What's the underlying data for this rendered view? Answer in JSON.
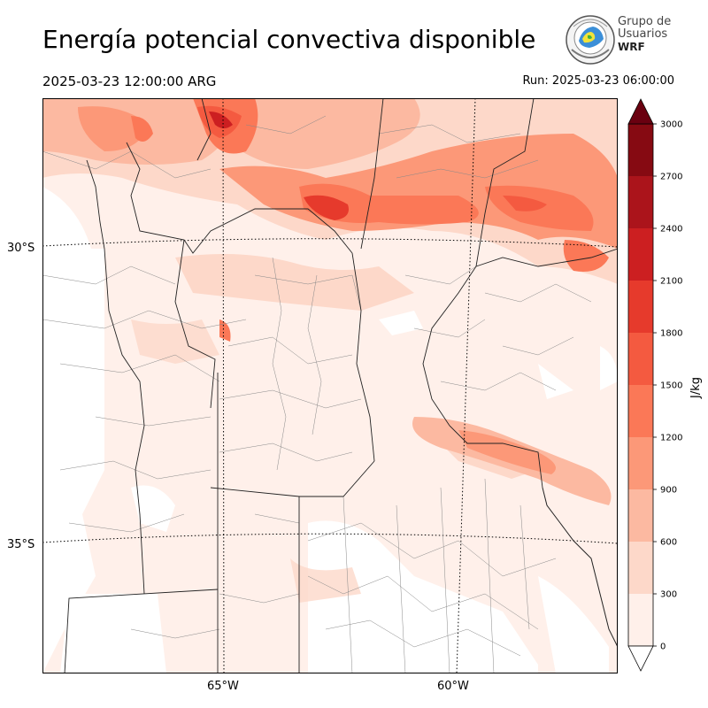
{
  "header": {
    "title": "Energía potencial convectiva disponible",
    "valid_time": "2025-03-23 12:00:00 ARG",
    "run_time": "Run: 2025-03-23 06:00:00"
  },
  "logo": {
    "line1": "Grupo de",
    "line2": "Usuarios",
    "line3": "WRF"
  },
  "map": {
    "lat_labels": [
      "30°S",
      "35°S"
    ],
    "lon_labels": [
      "65°W",
      "60°W"
    ]
  },
  "colorbar": {
    "unit": "J/kg",
    "ticks": [
      "0",
      "300",
      "600",
      "900",
      "1200",
      "1500",
      "1800",
      "2100",
      "2400",
      "2700",
      "3000"
    ],
    "colors": [
      "#fff0ea",
      "#fdd8c9",
      "#fcb9a1",
      "#fc9878",
      "#fb7857",
      "#f45a40",
      "#e63a2c",
      "#cc1f21",
      "#ab141b",
      "#860a12",
      "#6a0010"
    ],
    "extend_max_color": "#6a0010",
    "extend_min_color": "#ffffff"
  }
}
